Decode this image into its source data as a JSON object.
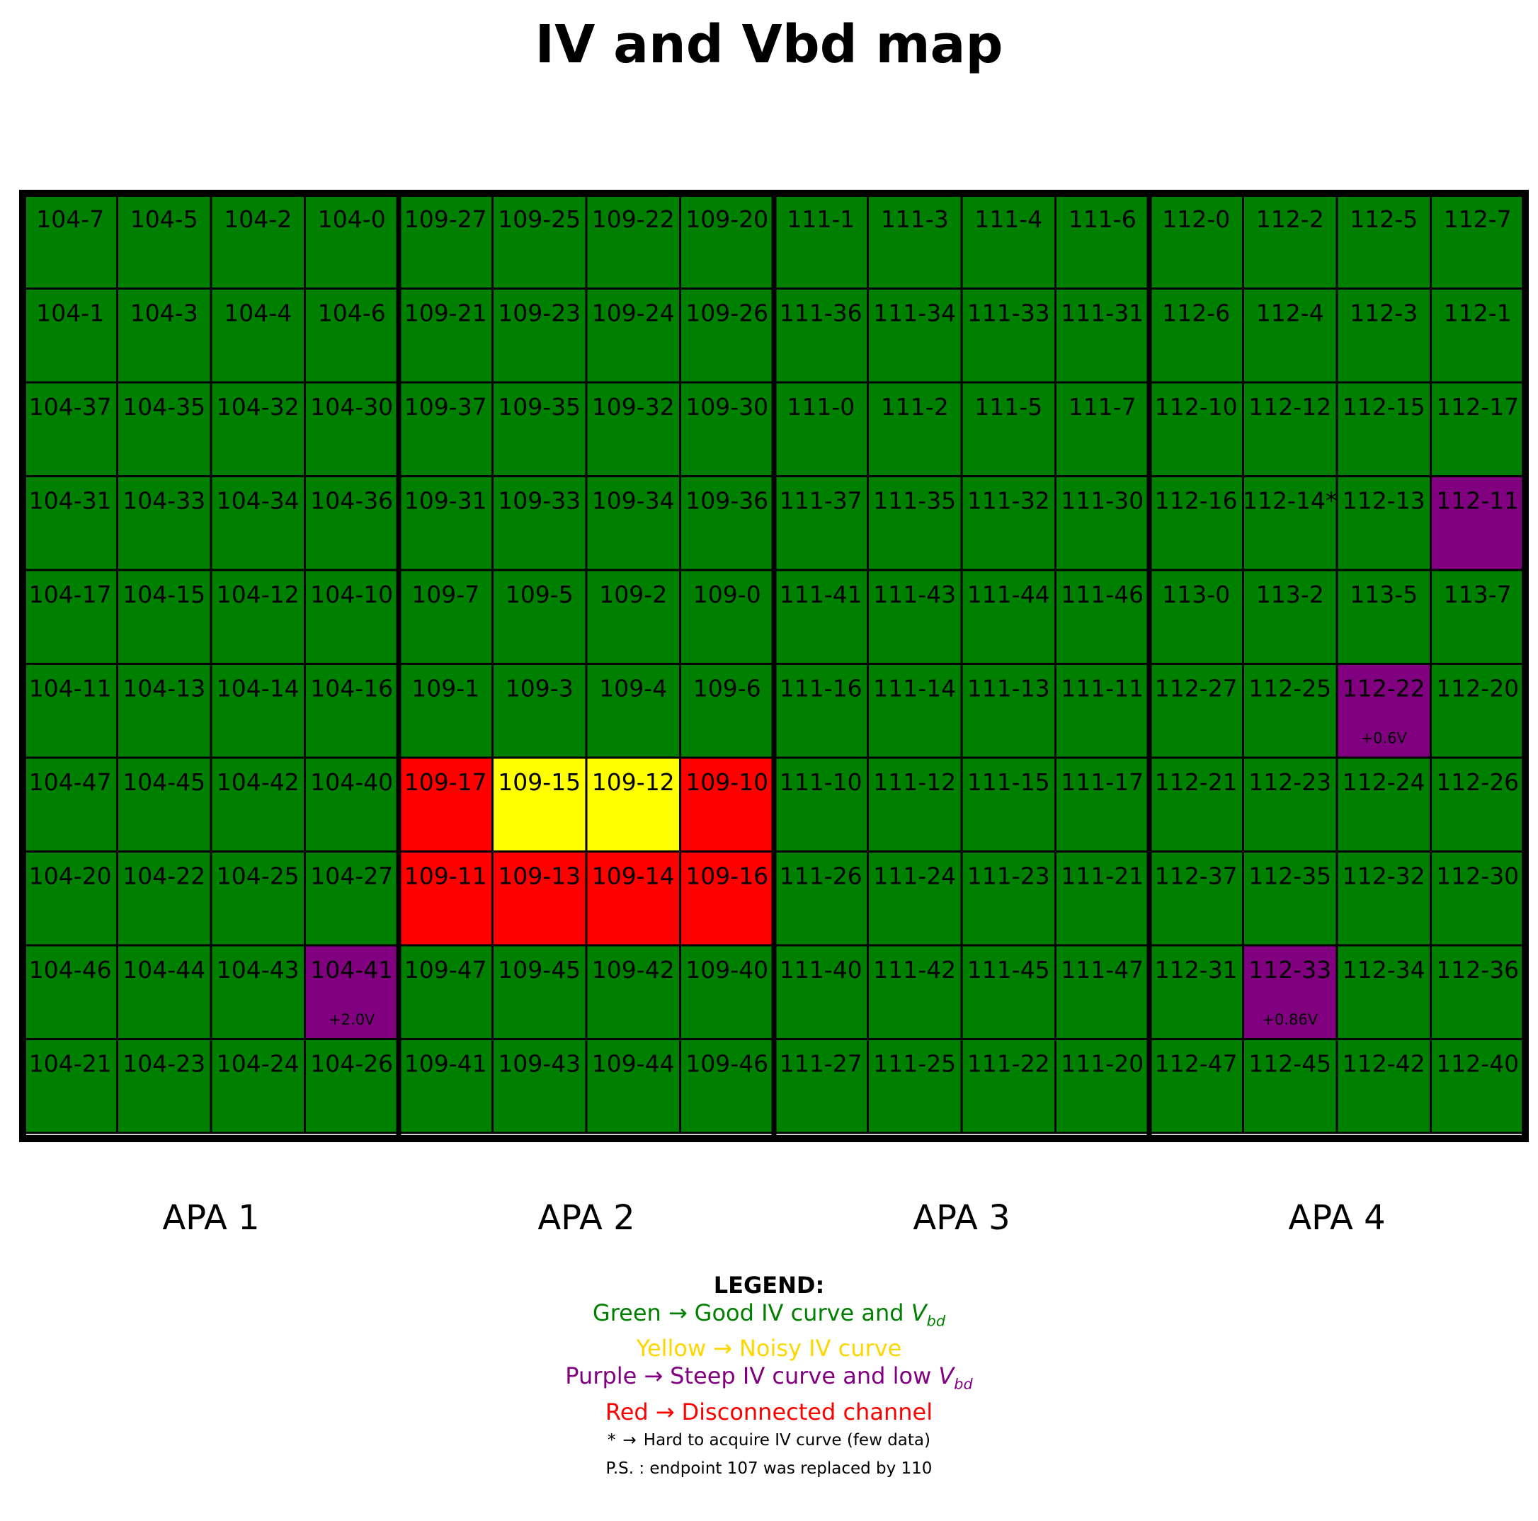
{
  "chart_data": {
    "type": "heatmap",
    "title": "IV and Vbd map",
    "columns": 16,
    "rows": 10,
    "groups": [
      "APA 1",
      "APA 2",
      "APA 3",
      "APA 4"
    ],
    "colors": {
      "green": "#008000",
      "yellow": "#ffff00",
      "purple": "#800080",
      "red": "#ff0000"
    },
    "cells": [
      [
        {
          "label": "104-7",
          "status": "green"
        },
        {
          "label": "104-5",
          "status": "green"
        },
        {
          "label": "104-2",
          "status": "green"
        },
        {
          "label": "104-0",
          "status": "green"
        },
        {
          "label": "109-27",
          "status": "green"
        },
        {
          "label": "109-25",
          "status": "green"
        },
        {
          "label": "109-22",
          "status": "green"
        },
        {
          "label": "109-20",
          "status": "green"
        },
        {
          "label": "111-1",
          "status": "green"
        },
        {
          "label": "111-3",
          "status": "green"
        },
        {
          "label": "111-4",
          "status": "green"
        },
        {
          "label": "111-6",
          "status": "green"
        },
        {
          "label": "112-0",
          "status": "green"
        },
        {
          "label": "112-2",
          "status": "green"
        },
        {
          "label": "112-5",
          "status": "green"
        },
        {
          "label": "112-7",
          "status": "green"
        }
      ],
      [
        {
          "label": "104-1",
          "status": "green"
        },
        {
          "label": "104-3",
          "status": "green"
        },
        {
          "label": "104-4",
          "status": "green"
        },
        {
          "label": "104-6",
          "status": "green"
        },
        {
          "label": "109-21",
          "status": "green"
        },
        {
          "label": "109-23",
          "status": "green"
        },
        {
          "label": "109-24",
          "status": "green"
        },
        {
          "label": "109-26",
          "status": "green"
        },
        {
          "label": "111-36",
          "status": "green"
        },
        {
          "label": "111-34",
          "status": "green"
        },
        {
          "label": "111-33",
          "status": "green"
        },
        {
          "label": "111-31",
          "status": "green"
        },
        {
          "label": "112-6",
          "status": "green"
        },
        {
          "label": "112-4",
          "status": "green"
        },
        {
          "label": "112-3",
          "status": "green"
        },
        {
          "label": "112-1",
          "status": "green"
        }
      ],
      [
        {
          "label": "104-37",
          "status": "green"
        },
        {
          "label": "104-35",
          "status": "green"
        },
        {
          "label": "104-32",
          "status": "green"
        },
        {
          "label": "104-30",
          "status": "green"
        },
        {
          "label": "109-37",
          "status": "green"
        },
        {
          "label": "109-35",
          "status": "green"
        },
        {
          "label": "109-32",
          "status": "green"
        },
        {
          "label": "109-30",
          "status": "green"
        },
        {
          "label": "111-0",
          "status": "green"
        },
        {
          "label": "111-2",
          "status": "green"
        },
        {
          "label": "111-5",
          "status": "green"
        },
        {
          "label": "111-7",
          "status": "green"
        },
        {
          "label": "112-10",
          "status": "green"
        },
        {
          "label": "112-12",
          "status": "green"
        },
        {
          "label": "112-15",
          "status": "green"
        },
        {
          "label": "112-17",
          "status": "green"
        }
      ],
      [
        {
          "label": "104-31",
          "status": "green"
        },
        {
          "label": "104-33",
          "status": "green"
        },
        {
          "label": "104-34",
          "status": "green"
        },
        {
          "label": "104-36",
          "status": "green"
        },
        {
          "label": "109-31",
          "status": "green"
        },
        {
          "label": "109-33",
          "status": "green"
        },
        {
          "label": "109-34",
          "status": "green"
        },
        {
          "label": "109-36",
          "status": "green"
        },
        {
          "label": "111-37",
          "status": "green"
        },
        {
          "label": "111-35",
          "status": "green"
        },
        {
          "label": "111-32",
          "status": "green"
        },
        {
          "label": "111-30",
          "status": "green"
        },
        {
          "label": "112-16",
          "status": "green"
        },
        {
          "label": "112-14*",
          "status": "green"
        },
        {
          "label": "112-13",
          "status": "green"
        },
        {
          "label": "112-11",
          "status": "purple"
        }
      ],
      [
        {
          "label": "104-17",
          "status": "green"
        },
        {
          "label": "104-15",
          "status": "green"
        },
        {
          "label": "104-12",
          "status": "green"
        },
        {
          "label": "104-10",
          "status": "green"
        },
        {
          "label": "109-7",
          "status": "green"
        },
        {
          "label": "109-5",
          "status": "green"
        },
        {
          "label": "109-2",
          "status": "green"
        },
        {
          "label": "109-0",
          "status": "green"
        },
        {
          "label": "111-41",
          "status": "green"
        },
        {
          "label": "111-43",
          "status": "green"
        },
        {
          "label": "111-44",
          "status": "green"
        },
        {
          "label": "111-46",
          "status": "green"
        },
        {
          "label": "113-0",
          "status": "green"
        },
        {
          "label": "113-2",
          "status": "green"
        },
        {
          "label": "113-5",
          "status": "green"
        },
        {
          "label": "113-7",
          "status": "green"
        }
      ],
      [
        {
          "label": "104-11",
          "status": "green"
        },
        {
          "label": "104-13",
          "status": "green"
        },
        {
          "label": "104-14",
          "status": "green"
        },
        {
          "label": "104-16",
          "status": "green"
        },
        {
          "label": "109-1",
          "status": "green"
        },
        {
          "label": "109-3",
          "status": "green"
        },
        {
          "label": "109-4",
          "status": "green"
        },
        {
          "label": "109-6",
          "status": "green"
        },
        {
          "label": "111-16",
          "status": "green"
        },
        {
          "label": "111-14",
          "status": "green"
        },
        {
          "label": "111-13",
          "status": "green"
        },
        {
          "label": "111-11",
          "status": "green"
        },
        {
          "label": "112-27",
          "status": "green"
        },
        {
          "label": "112-25",
          "status": "green"
        },
        {
          "label": "112-22",
          "status": "purple",
          "note": "+0.6V"
        },
        {
          "label": "112-20",
          "status": "green"
        }
      ],
      [
        {
          "label": "104-47",
          "status": "green"
        },
        {
          "label": "104-45",
          "status": "green"
        },
        {
          "label": "104-42",
          "status": "green"
        },
        {
          "label": "104-40",
          "status": "green"
        },
        {
          "label": "109-17",
          "status": "red"
        },
        {
          "label": "109-15",
          "status": "yellow"
        },
        {
          "label": "109-12",
          "status": "yellow"
        },
        {
          "label": "109-10",
          "status": "red"
        },
        {
          "label": "111-10",
          "status": "green"
        },
        {
          "label": "111-12",
          "status": "green"
        },
        {
          "label": "111-15",
          "status": "green"
        },
        {
          "label": "111-17",
          "status": "green"
        },
        {
          "label": "112-21",
          "status": "green"
        },
        {
          "label": "112-23",
          "status": "green"
        },
        {
          "label": "112-24",
          "status": "green"
        },
        {
          "label": "112-26",
          "status": "green"
        }
      ],
      [
        {
          "label": "104-20",
          "status": "green"
        },
        {
          "label": "104-22",
          "status": "green"
        },
        {
          "label": "104-25",
          "status": "green"
        },
        {
          "label": "104-27",
          "status": "green"
        },
        {
          "label": "109-11",
          "status": "red"
        },
        {
          "label": "109-13",
          "status": "red"
        },
        {
          "label": "109-14",
          "status": "red"
        },
        {
          "label": "109-16",
          "status": "red"
        },
        {
          "label": "111-26",
          "status": "green"
        },
        {
          "label": "111-24",
          "status": "green"
        },
        {
          "label": "111-23",
          "status": "green"
        },
        {
          "label": "111-21",
          "status": "green"
        },
        {
          "label": "112-37",
          "status": "green"
        },
        {
          "label": "112-35",
          "status": "green"
        },
        {
          "label": "112-32",
          "status": "green"
        },
        {
          "label": "112-30",
          "status": "green"
        }
      ],
      [
        {
          "label": "104-46",
          "status": "green"
        },
        {
          "label": "104-44",
          "status": "green"
        },
        {
          "label": "104-43",
          "status": "green"
        },
        {
          "label": "104-41",
          "status": "purple",
          "note": "+2.0V"
        },
        {
          "label": "109-47",
          "status": "green"
        },
        {
          "label": "109-45",
          "status": "green"
        },
        {
          "label": "109-42",
          "status": "green"
        },
        {
          "label": "109-40",
          "status": "green"
        },
        {
          "label": "111-40",
          "status": "green"
        },
        {
          "label": "111-42",
          "status": "green"
        },
        {
          "label": "111-45",
          "status": "green"
        },
        {
          "label": "111-47",
          "status": "green"
        },
        {
          "label": "112-31",
          "status": "green"
        },
        {
          "label": "112-33",
          "status": "purple",
          "note": "+0.86V"
        },
        {
          "label": "112-34",
          "status": "green"
        },
        {
          "label": "112-36",
          "status": "green"
        }
      ],
      [
        {
          "label": "104-21",
          "status": "green"
        },
        {
          "label": "104-23",
          "status": "green"
        },
        {
          "label": "104-24",
          "status": "green"
        },
        {
          "label": "104-26",
          "status": "green"
        },
        {
          "label": "109-41",
          "status": "green"
        },
        {
          "label": "109-43",
          "status": "green"
        },
        {
          "label": "109-44",
          "status": "green"
        },
        {
          "label": "109-46",
          "status": "green"
        },
        {
          "label": "111-27",
          "status": "green"
        },
        {
          "label": "111-25",
          "status": "green"
        },
        {
          "label": "111-22",
          "status": "green"
        },
        {
          "label": "111-20",
          "status": "green"
        },
        {
          "label": "112-47",
          "status": "green"
        },
        {
          "label": "112-45",
          "status": "green"
        },
        {
          "label": "112-42",
          "status": "green"
        },
        {
          "label": "112-40",
          "status": "green"
        }
      ]
    ]
  },
  "legend": {
    "title": "LEGEND:",
    "arrow": "→",
    "entries": [
      {
        "color_word": "Green",
        "description": "Good IV curve and",
        "vbd": true,
        "color": "#008000"
      },
      {
        "color_word": "Yellow",
        "description": "Noisy IV curve",
        "vbd": false,
        "color": "#ffd700"
      },
      {
        "color_word": "Purple",
        "description": "Steep IV curve and low",
        "vbd": true,
        "color": "#800080"
      },
      {
        "color_word": "Red",
        "description": "Disconnected channel",
        "vbd": false,
        "color": "#ff0000"
      }
    ],
    "vbd_base": "V",
    "vbd_sub": "bd",
    "asterisk_symbol": "*",
    "asterisk_note": "Hard to acquire IV curve (few data)",
    "ps_note": "P.S. : endpoint 107 was replaced by 110"
  }
}
